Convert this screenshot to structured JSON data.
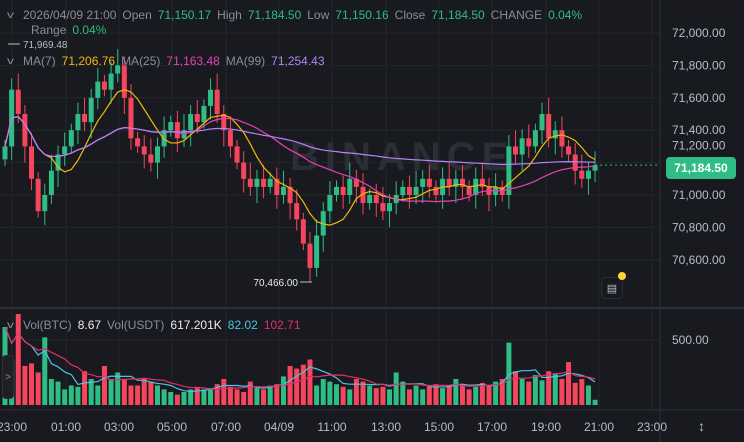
{
  "header": {
    "datetime": "2026/04/09 21:00",
    "open_label": "Open",
    "open": "71,150.17",
    "high_label": "High",
    "high": "71,184.50",
    "low_label": "Low",
    "low": "71,150.16",
    "close_label": "Close",
    "close": "71,184.50",
    "change_label": "CHANGE",
    "change": "0.04%",
    "range_label": "Range",
    "range": "0.04%"
  },
  "ma": {
    "ma7_label": "MA(7)",
    "ma7": "71,206.76",
    "ma25_label": "MA(25)",
    "ma25": "71,163.48",
    "ma99_label": "MA(99)",
    "ma99": "71,254.43"
  },
  "vol": {
    "btc_label": "Vol(BTC)",
    "btc": "8.67",
    "usdt_label": "Vol(USDT)",
    "usdt": "617.201K",
    "ma1": "82.02",
    "ma2": "102.71"
  },
  "last_price": "71,184.50",
  "colors": {
    "up": "#2ebd85",
    "down": "#f6465d",
    "ma7": "#f0b90b",
    "ma25": "#eb40b5",
    "ma99": "#b385f9",
    "vol_ma1": "#4fc3e0",
    "vol_ma2": "#e0306b"
  },
  "icons": {
    "collapse": "chevron-down-icon",
    "expand_panel": "chevron-right-icon",
    "news": "news-icon",
    "fit": "vertical-resize-icon"
  },
  "chart_data": {
    "type": "candlestick",
    "interval": "15m",
    "price_ticks": [
      "72,000.00",
      "71,800.00",
      "71,600.00",
      "71,400.00",
      "71,200.00",
      "71,000.00",
      "70,800.00",
      "70,600.00"
    ],
    "price_range": [
      70400,
      72100
    ],
    "volume_ticks": [
      "500.00"
    ],
    "time_ticks": [
      "23:00",
      "01:00",
      "03:00",
      "05:00",
      "07:00",
      "04/09",
      "11:00",
      "13:00",
      "15:00",
      "17:00",
      "19:00",
      "21:00",
      "23:00"
    ],
    "annotations": {
      "max": "71,969.48",
      "min": "70,466.00"
    },
    "close": [
      71300,
      71650,
      71500,
      71300,
      71100,
      70900,
      71000,
      71150,
      71250,
      71300,
      71400,
      71500,
      71450,
      71600,
      71700,
      71650,
      71750,
      71800,
      71600,
      71350,
      71300,
      71250,
      71200,
      71300,
      71400,
      71450,
      71350,
      71400,
      71500,
      71450,
      71550,
      71650,
      71500,
      71400,
      71300,
      71200,
      71100,
      71050,
      71100,
      71050,
      71100,
      71000,
      71050,
      70950,
      70850,
      70700,
      70550,
      70750,
      70900,
      71000,
      71050,
      71000,
      71100,
      71050,
      70950,
      71000,
      70950,
      70900,
      70950,
      71000,
      71050,
      71000,
      71050,
      71100,
      71050,
      71000,
      71100,
      71050,
      71100,
      71050,
      71000,
      71100,
      71050,
      71000,
      71050,
      71000,
      71300,
      71250,
      71350,
      71300,
      71400,
      71500,
      71350,
      71400,
      71300,
      71250,
      71150,
      71100,
      71150,
      71184.5
    ],
    "volume": [
      600,
      350,
      700,
      300,
      320,
      250,
      520,
      200,
      180,
      120,
      150,
      140,
      260,
      200,
      150,
      300,
      200,
      250,
      200,
      150,
      150,
      200,
      180,
      150,
      120,
      100,
      80,
      100,
      120,
      140,
      120,
      130,
      160,
      200,
      140,
      120,
      100,
      180,
      130,
      120,
      150,
      160,
      220,
      300,
      280,
      310,
      350,
      150,
      200,
      180,
      160,
      140,
      120,
      200,
      180,
      150,
      130,
      140,
      120,
      250,
      180,
      120,
      150,
      120,
      140,
      160,
      130,
      150,
      200,
      160,
      120,
      140,
      170,
      150,
      180,
      200,
      480,
      260,
      200,
      180,
      230,
      190,
      260,
      240,
      200,
      330,
      170,
      200,
      150,
      40
    ]
  }
}
